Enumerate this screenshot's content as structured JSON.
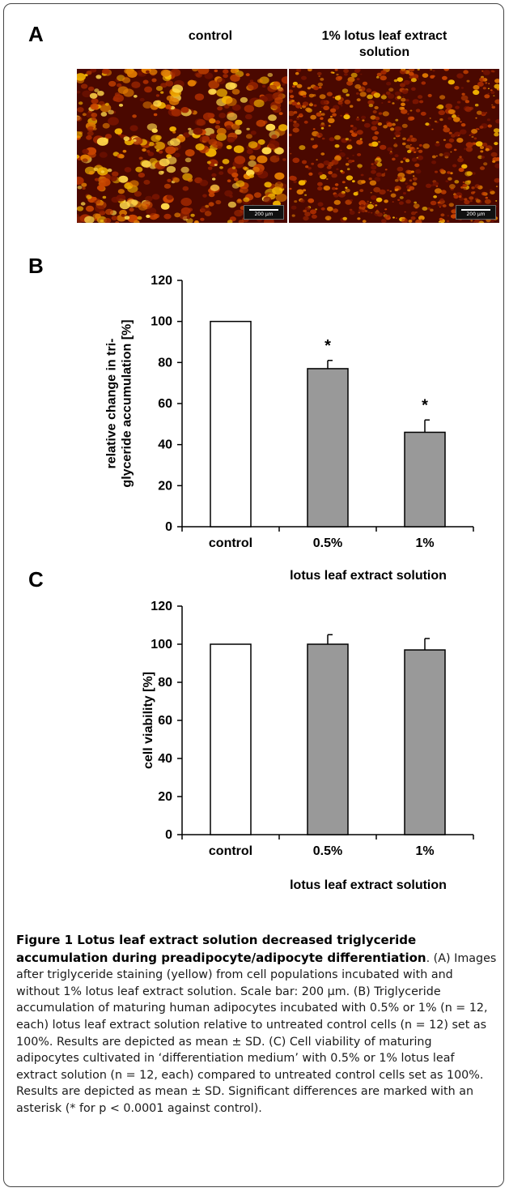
{
  "panels": {
    "a": {
      "letter": "A",
      "titles": [
        "control",
        "1% lotus leaf extract solution"
      ],
      "scale_label": "200 µm"
    },
    "b": {
      "letter": "B"
    },
    "c": {
      "letter": "C"
    }
  },
  "chart_data": [
    {
      "type": "bar",
      "panel": "B",
      "categories": [
        "control",
        "0.5%",
        "1%"
      ],
      "values": [
        100,
        77,
        46
      ],
      "errors": [
        0,
        4,
        6
      ],
      "significance": [
        "",
        "*",
        "*"
      ],
      "bar_colors": [
        "#ffffff",
        "#999999",
        "#999999"
      ],
      "ylabel": "relative change in tri-glyceride accumulation [%]",
      "ylabel_lines": [
        "relative change in tri-",
        "glyceride accumulation [%]"
      ],
      "xlabel": "lotus leaf extract solution",
      "ylim": [
        0,
        120
      ],
      "yticks": [
        0,
        20,
        40,
        60,
        80,
        100,
        120
      ]
    },
    {
      "type": "bar",
      "panel": "C",
      "categories": [
        "control",
        "0.5%",
        "1%"
      ],
      "values": [
        100,
        100,
        97
      ],
      "errors": [
        0,
        5,
        6
      ],
      "significance": [
        "",
        "",
        ""
      ],
      "bar_colors": [
        "#ffffff",
        "#999999",
        "#999999"
      ],
      "ylabel": "cell viability [%]",
      "ylabel_lines": [
        "cell viability [%]"
      ],
      "xlabel": "lotus leaf extract solution",
      "ylim": [
        0,
        120
      ],
      "yticks": [
        0,
        20,
        40,
        60,
        80,
        100,
        120
      ]
    }
  ],
  "caption": {
    "bold": "Figure 1 Lotus leaf extract solution decreased triglyceride accumulation during preadipocyte/adipocyte differentiation",
    "text": ". (A) Images after triglyceride staining (yellow) from cell populations incubated with and without 1% lotus leaf extract solution. Scale bar: 200 µm. (B) Triglyceride accumulation of maturing human adipocytes incubated with 0.5% or 1% (n = 12, each) lotus leaf extract solution relative to untreated control cells (n = 12) set as 100%. Results are depicted as mean ± SD. (C) Cell viability of maturing adipocytes cultivated in ‘differentiation medium’ with 0.5% or 1% lotus leaf extract solution (n = 12, each) compared to untreated control cells set as 100%. Results are depicted as mean ± SD. Significant differences are marked with an asterisk (* for p < 0.0001 against control)."
  }
}
